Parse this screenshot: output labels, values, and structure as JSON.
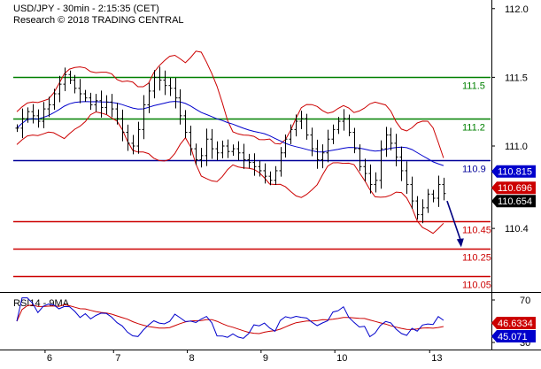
{
  "header": {
    "title": "USD/JPY - 30min - 2:15:35 (CET)",
    "subtitle": "Research © 2018 TRADING CENTRAL"
  },
  "chart_data": [
    {
      "type": "line",
      "name": "price",
      "ylim": [
        109.95,
        112.05
      ],
      "y_ticks": [
        "112.0",
        "111.5",
        "111.0",
        "110.4"
      ],
      "y_tick_values": [
        112.0,
        111.5,
        111.0,
        110.4
      ],
      "x_ticks": [
        "6",
        "7",
        "8",
        "9",
        "10",
        "13"
      ],
      "levels": [
        {
          "label": "111.5",
          "value": 111.5,
          "color": "#008000"
        },
        {
          "label": "111.2",
          "value": 111.2,
          "color": "#008000"
        },
        {
          "label": "110.9",
          "value": 110.9,
          "color": "#000099"
        },
        {
          "label": "110.45",
          "value": 110.45,
          "color": "#cc0000"
        },
        {
          "label": "110.25",
          "value": 110.25,
          "color": "#cc0000"
        },
        {
          "label": "110.05",
          "value": 110.05,
          "color": "#cc0000"
        }
      ],
      "value_tags": [
        {
          "label": "110.815",
          "value": 110.815,
          "bg": "#0000cc",
          "fg": "#ffffff"
        },
        {
          "label": "110.696",
          "value": 110.696,
          "bg": "#cc0000",
          "fg": "#ffffff"
        },
        {
          "label": "110.654",
          "value": 110.654,
          "bg": "#000000",
          "fg": "#ffffff"
        }
      ],
      "close_series": [
        111.13,
        111.2,
        111.25,
        111.22,
        111.18,
        111.27,
        111.3,
        111.38,
        111.45,
        111.52,
        111.48,
        111.42,
        111.38,
        111.35,
        111.3,
        111.33,
        111.28,
        111.32,
        111.27,
        111.2,
        111.1,
        111.02,
        111.0,
        111.12,
        111.3,
        111.4,
        111.5,
        111.48,
        111.44,
        111.42,
        111.35,
        111.22,
        111.1,
        110.98,
        110.9,
        110.93,
        111.05,
        110.98,
        110.95,
        111.0,
        110.96,
        110.98,
        110.95,
        110.9,
        110.88,
        110.85,
        110.82,
        110.78,
        110.75,
        110.82,
        110.95,
        111.05,
        111.12,
        111.18,
        111.2,
        111.08,
        110.98,
        110.9,
        110.95,
        111.05,
        111.12,
        111.18,
        111.2,
        111.1,
        110.98,
        110.85,
        110.8,
        110.72,
        110.75,
        110.98,
        111.08,
        111.02,
        110.92,
        110.82,
        110.72,
        110.6,
        110.5,
        110.55,
        110.65,
        110.62,
        110.72,
        110.654
      ],
      "x_labels_index": [
        2,
        15,
        29,
        43,
        57,
        75
      ],
      "level_line_end_index": 81,
      "arrow": {
        "from": [
          81,
          110.6
        ],
        "to": [
          83,
          110.25
        ],
        "color": "#000080"
      }
    },
    {
      "type": "line",
      "name": "RSI14 - 9MA",
      "ylim": [
        25,
        75
      ],
      "y_ticks": [
        "70",
        "30"
      ],
      "y_tick_values": [
        70,
        30
      ],
      "value_tags": [
        {
          "label": "46.6334",
          "value": 46.6334,
          "bg": "#cc0000",
          "fg": "#ffffff"
        },
        {
          "label": "45.071",
          "value": 45.071,
          "bg": "#0000cc",
          "fg": "#ffffff"
        }
      ]
    }
  ]
}
